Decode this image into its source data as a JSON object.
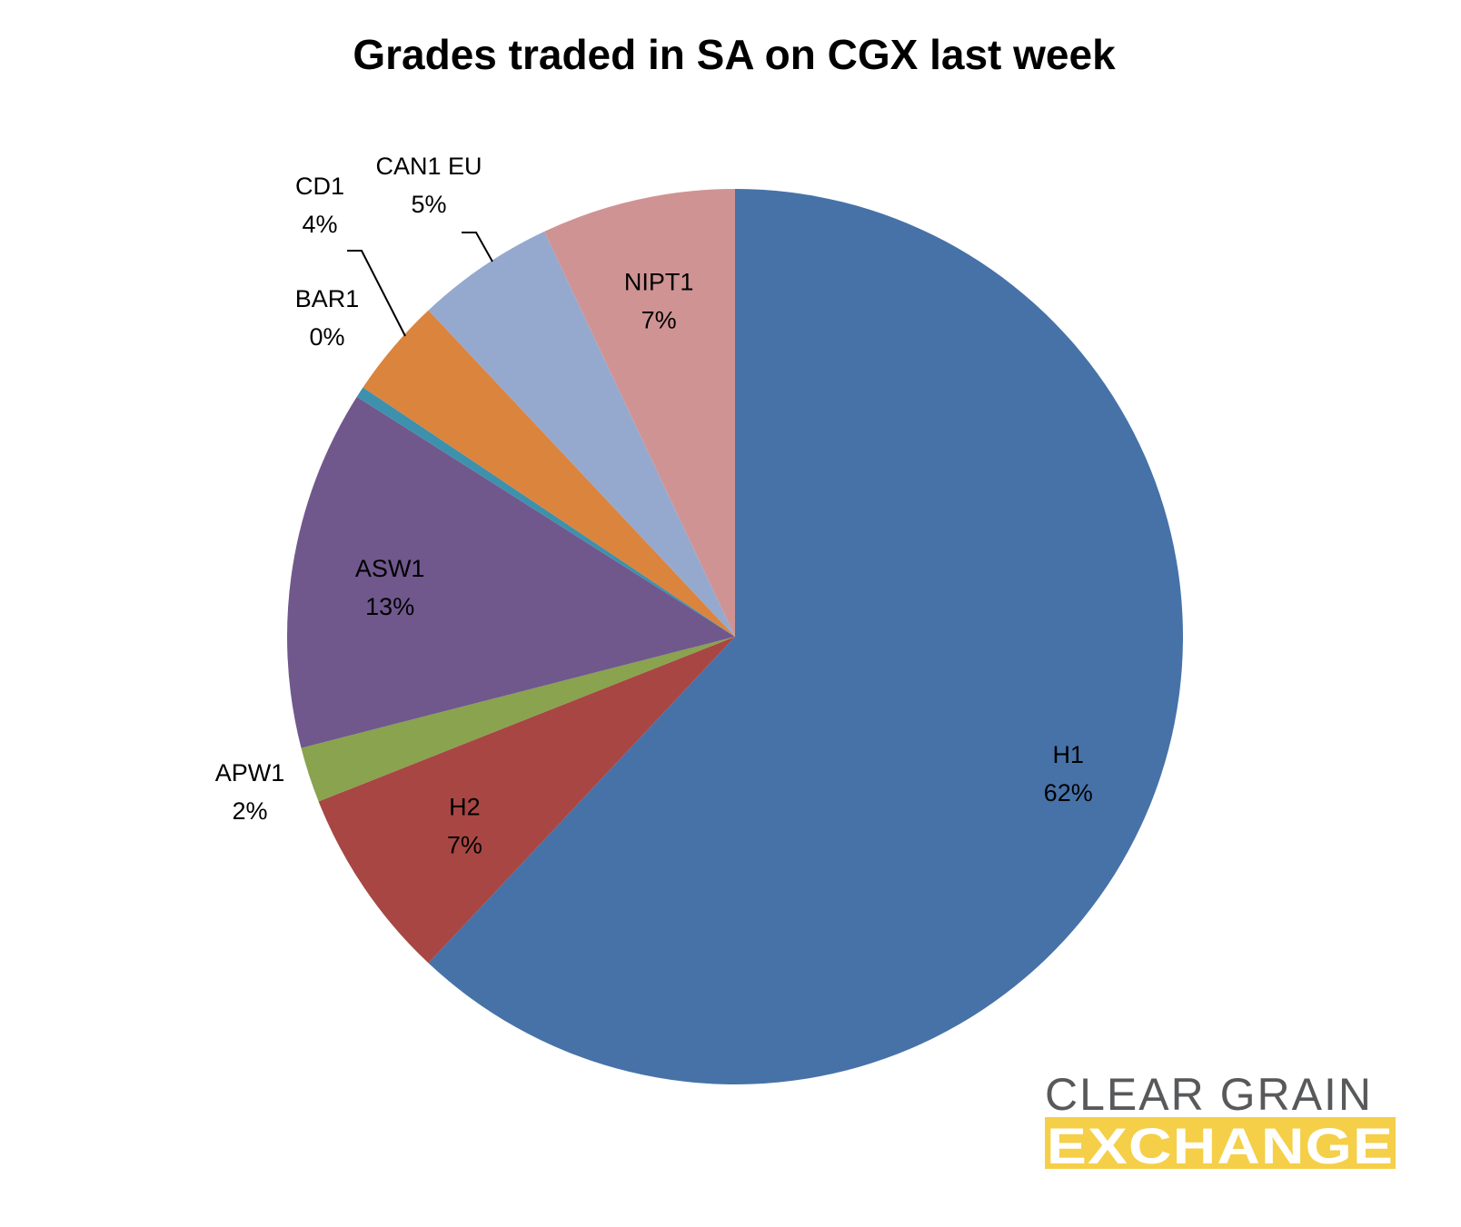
{
  "chart_data": {
    "type": "pie",
    "title": "Grades traded in SA on CGX last week",
    "start_angle_deg": 0,
    "direction": "clockwise",
    "slices": [
      {
        "name": "H1",
        "value": 62,
        "label_pct": "62%",
        "color": "#4672A8"
      },
      {
        "name": "H2",
        "value": 7,
        "label_pct": "7%",
        "color": "#A84644"
      },
      {
        "name": "APW1",
        "value": 2,
        "label_pct": "2%",
        "color": "#89A34E"
      },
      {
        "name": "ASW1",
        "value": 13,
        "label_pct": "13%",
        "color": "#70588D"
      },
      {
        "name": "BAR1",
        "value": 0.4,
        "label_pct": "0%",
        "color": "#3E91AC"
      },
      {
        "name": "CD1",
        "value": 3.6,
        "label_pct": "4%",
        "color": "#DB843D"
      },
      {
        "name": "CAN1 EU",
        "value": 5,
        "label_pct": "5%",
        "color": "#95A9CF"
      },
      {
        "name": "NIPT1",
        "value": 7,
        "label_pct": "7%",
        "color": "#D09394"
      }
    ]
  },
  "logo": {
    "line1": "CLEAR GRAIN",
    "line2": "EXCHANGE",
    "line1_color": "#58595B",
    "line2_bg_color": "#F5CF47"
  }
}
